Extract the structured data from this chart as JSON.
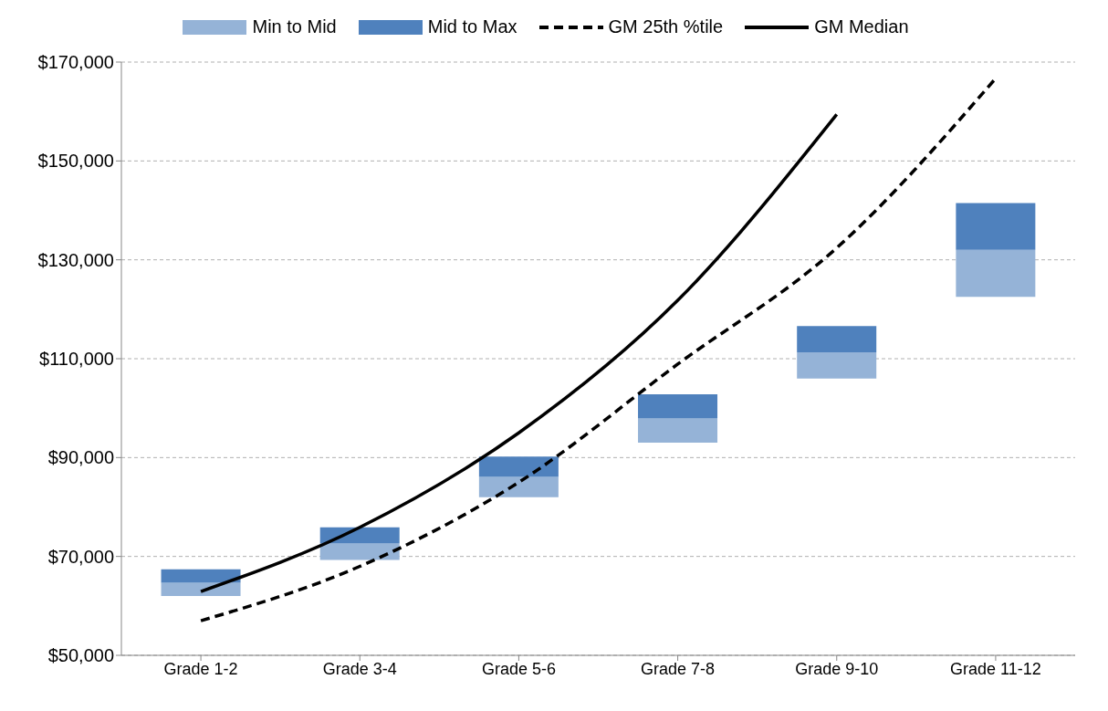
{
  "chart_data": {
    "type": "bar",
    "categories": [
      "Grade 1-2",
      "Grade 3-4",
      "Grade 5-6",
      "Grade 7-8",
      "Grade 9-10",
      "Grade 11-12"
    ],
    "series": [
      {
        "name": "Min to Mid",
        "color": "#95b3d7",
        "base": [
          62000,
          69300,
          82000,
          93000,
          106000,
          122500
        ],
        "values": [
          2700,
          3300,
          4100,
          4900,
          5300,
          9500
        ]
      },
      {
        "name": "Mid to Max",
        "color": "#4f81bd",
        "base": [
          64700,
          72600,
          86100,
          97900,
          111300,
          132000
        ],
        "values": [
          2700,
          3300,
          4100,
          4900,
          5300,
          9500
        ]
      },
      {
        "name": "GM 25th %tile",
        "type": "line",
        "color": "#000000",
        "line_style": "dashed",
        "values": [
          57000,
          68000,
          85000,
          108900,
          132400,
          166700
        ]
      },
      {
        "name": "GM Median",
        "type": "line",
        "color": "#000000",
        "line_style": "solid",
        "values": [
          62900,
          75900,
          95000,
          121800,
          159400,
          null
        ]
      }
    ],
    "ylim": [
      50000,
      170000
    ],
    "yticks": [
      {
        "value": 50000,
        "label": "$50,000"
      },
      {
        "value": 70000,
        "label": "$70,000"
      },
      {
        "value": 90000,
        "label": "$90,000"
      },
      {
        "value": 110000,
        "label": "$110,000"
      },
      {
        "value": 130000,
        "label": "$130,000"
      },
      {
        "value": 150000,
        "label": "$150,000"
      },
      {
        "value": 170000,
        "label": "$170,000"
      }
    ],
    "grid": "y",
    "legend": "top",
    "marker": "none"
  }
}
